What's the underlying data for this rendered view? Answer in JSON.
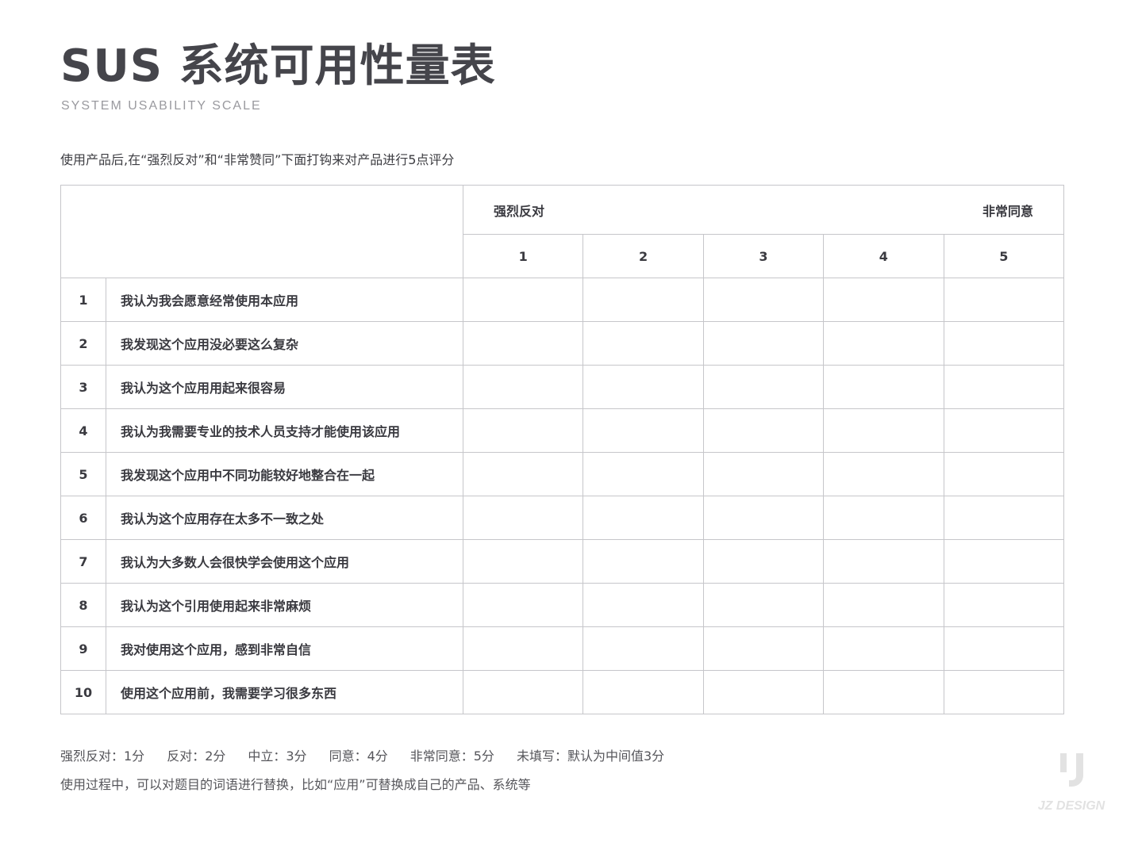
{
  "header": {
    "title": "SUS 系统可用性量表",
    "subtitle": "SYSTEM USABILITY SCALE",
    "instruction": "使用产品后,在“强烈反对”和“非常赞同”下面打钩来对产品进行5点评分"
  },
  "table": {
    "scale_low": "强烈反对",
    "scale_high": "非常同意",
    "scores": [
      "1",
      "2",
      "3",
      "4",
      "5"
    ],
    "rows": [
      {
        "num": "1",
        "q": "我认为我会愿意经常使用本应用"
      },
      {
        "num": "2",
        "q": "我发现这个应用没必要这么复杂"
      },
      {
        "num": "3",
        "q": "我认为这个应用用起来很容易"
      },
      {
        "num": "4",
        "q": "我认为我需要专业的技术人员支持才能使用该应用"
      },
      {
        "num": "5",
        "q": "我发现这个应用中不同功能较好地整合在一起"
      },
      {
        "num": "6",
        "q": "我认为这个应用存在太多不一致之处"
      },
      {
        "num": "7",
        "q": "我认为大多数人会很快学会使用这个应用"
      },
      {
        "num": "8",
        "q": "我认为这个引用使用起来非常麻烦"
      },
      {
        "num": "9",
        "q": "我对使用这个应用，感到非常自信"
      },
      {
        "num": "10",
        "q": "使用这个应用前，我需要学习很多东西"
      }
    ]
  },
  "footer": {
    "legend": [
      "强烈反对：1分",
      "反对：2分",
      "中立：3分",
      "同意：4分",
      "非常同意：5分",
      "未填写：默认为中间值3分"
    ],
    "note": "使用过程中，可以对题目的词语进行替换，比如“应用”可替换成自己的产品、系统等",
    "logo_text": "JZ DESIGN"
  }
}
